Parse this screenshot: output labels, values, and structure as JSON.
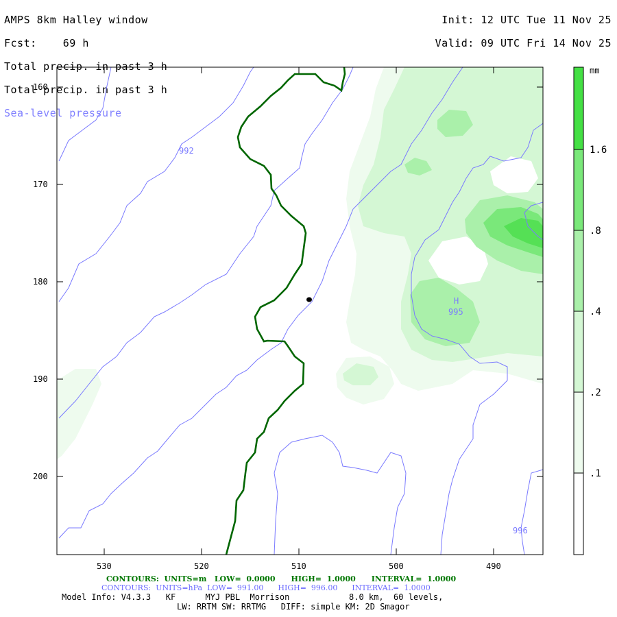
{
  "header": {
    "title": "AMPS 8km Halley window",
    "forecast_label": "Fcst:",
    "forecast_hours": "69 h",
    "field_1": "Total precip. in past 3 h",
    "field_2": "Total precip. in past 3 h",
    "field_3": "Sea-level pressure",
    "init_label": "Init:",
    "init_value": "12 UTC Tue 11 Nov 25",
    "valid_label": "Valid:",
    "valid_value": "09 UTC Fri 14 Nov 25"
  },
  "map": {
    "x_ticks": [
      "530",
      "520",
      "510",
      "500",
      "490"
    ],
    "y_ticks": [
      "160",
      "170",
      "180",
      "190",
      "200"
    ],
    "isobar_labels": [
      "992",
      "995",
      "996"
    ],
    "high_marker": "H",
    "isobar_color": "#7a7aff",
    "coastline_color": "#006600",
    "station_color": "#000000"
  },
  "colorbar": {
    "unit": "mm",
    "levels": [
      ".1",
      ".2",
      ".4",
      ".8",
      "1.6"
    ],
    "colors": [
      "#ffffff",
      "#eefbee",
      "#d4f7d4",
      "#aaf0aa",
      "#7ae87a",
      "#44e044"
    ]
  },
  "footer": {
    "green_line": "CONTOURS:  UNITS=m   LOW=  0.0000      HIGH=  1.0000      INTERVAL=  1.0000",
    "blue_line": "CONTOURS:  UNITS=hPa  LOW=  991.00      HIGH=  996.00      INTERVAL=  1.0000",
    "model_line": "Model Info: V4.3.3   KF      MYJ PBL  Morrison            8.0 km,  60 levels,",
    "physics_line": "LW: RRTM SW: RRTMG   DIFF: simple KM: 2D Smagor"
  }
}
